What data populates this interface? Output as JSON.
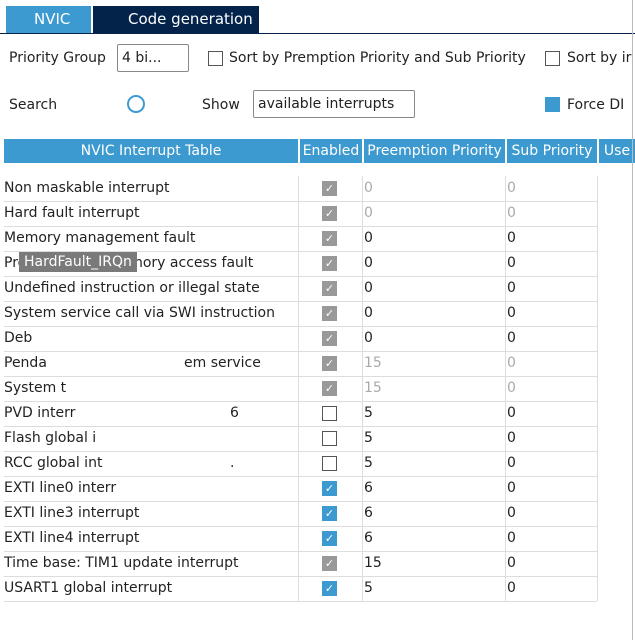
{
  "tabs": [
    "NVIC",
    "Code generation"
  ],
  "toolbar": {
    "priority_group_label": "Priority Group",
    "priority_group_value": "4 bi...",
    "sort_premption": "Sort by Premption Priority and Sub Priority",
    "sort_ir": "Sort by ir",
    "search_label": "Search",
    "show_label": "Show",
    "show_value": "available interrupts",
    "force": "Force DI"
  },
  "table": {
    "columns": [
      "NVIC Interrupt Table",
      "Enabled",
      "Preemption Priority",
      "Sub Priority",
      "Use"
    ],
    "rows": [
      {
        "name": "Non maskable interrupt",
        "enabled": true,
        "locked": true,
        "preemption": 0,
        "sub": 0,
        "grey": true
      },
      {
        "name": "Hard fault interrupt",
        "enabled": true,
        "locked": true,
        "preemption": 0,
        "sub": 0,
        "grey": true
      },
      {
        "name": "Memory management fault",
        "enabled": true,
        "locked": true,
        "preemption": 0,
        "sub": 0,
        "grey": false
      },
      {
        "name": "Prefetch fault, memory access fault",
        "enabled": true,
        "locked": true,
        "preemption": 0,
        "sub": 0,
        "grey": false
      },
      {
        "name": "Undefined instruction or illegal state",
        "enabled": true,
        "locked": true,
        "preemption": 0,
        "sub": 0,
        "grey": false
      },
      {
        "name": "System service call via SWI instruction",
        "enabled": true,
        "locked": true,
        "preemption": 0,
        "sub": 0,
        "grey": false
      },
      {
        "name": "Deb",
        "enabled": true,
        "locked": true,
        "preemption": 0,
        "sub": 0,
        "grey": false
      },
      {
        "name": "Penda",
        "tail": "em service",
        "enabled": true,
        "locked": true,
        "preemption": 15,
        "sub": 0,
        "grey": true
      },
      {
        "name": "System t",
        "enabled": true,
        "locked": true,
        "preemption": 15,
        "sub": 0,
        "grey": true
      },
      {
        "name": "PVD interr",
        "tail": "6",
        "enabled": false,
        "locked": false,
        "preemption": 5,
        "sub": 0,
        "grey": false
      },
      {
        "name": "Flash global i",
        "enabled": false,
        "locked": false,
        "preemption": 5,
        "sub": 0,
        "grey": false
      },
      {
        "name": "RCC global int",
        "tail": ".",
        "enabled": false,
        "locked": false,
        "preemption": 5,
        "sub": 0,
        "grey": false
      },
      {
        "name": "EXTI line0 interr",
        "enabled": true,
        "locked": false,
        "preemption": 6,
        "sub": 0,
        "grey": false
      },
      {
        "name": "EXTI line3 interrupt",
        "enabled": true,
        "locked": false,
        "preemption": 6,
        "sub": 0,
        "grey": false
      },
      {
        "name": "EXTI line4 interrupt",
        "enabled": true,
        "locked": false,
        "preemption": 6,
        "sub": 0,
        "grey": false
      },
      {
        "name": "Time base: TIM1 update interrupt",
        "enabled": true,
        "locked": true,
        "preemption": 15,
        "sub": 0,
        "grey": false
      },
      {
        "name": "USART1 global interrupt",
        "enabled": true,
        "locked": false,
        "preemption": 5,
        "sub": 0,
        "grey": false
      }
    ]
  },
  "tooltip": "HardFault_IRQn"
}
